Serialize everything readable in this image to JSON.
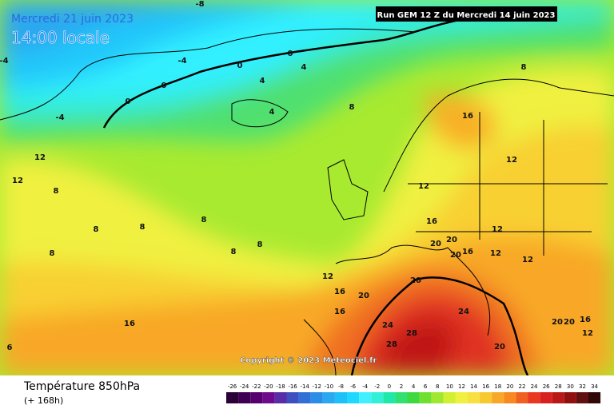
{
  "header": {
    "date": "Mercredi 21 juin 2023",
    "time": "14:00 locale",
    "run": "Run GEM 12 Z du Mercredi 14 juin 2023"
  },
  "copyright": "Copyright © 2023 Meteociel.fr",
  "footer": {
    "title": "Température 850hPa",
    "lead": "(+ 168h)"
  },
  "map": {
    "labels": [
      "-8",
      "-4",
      "-4",
      "-4",
      "0",
      "0",
      "0",
      "0",
      "4",
      "4",
      "4",
      "8",
      "8",
      "12",
      "12",
      "8",
      "8",
      "8",
      "8",
      "8",
      "8",
      "8",
      "12",
      "16",
      "16",
      "16",
      "12",
      "12",
      "16",
      "20",
      "20",
      "24",
      "28",
      "28",
      "24",
      "20",
      "20",
      "20",
      "16",
      "12",
      "12",
      "12",
      "12",
      "20",
      "20",
      "20",
      "16",
      "16",
      "6"
    ]
  },
  "colorbar": {
    "ticks": [
      -26,
      -24,
      -22,
      -20,
      -18,
      -16,
      -14,
      -12,
      -10,
      -8,
      -6,
      -4,
      -2,
      0,
      2,
      4,
      6,
      8,
      10,
      12,
      14,
      16,
      18,
      20,
      22,
      24,
      26,
      28,
      30,
      32,
      34
    ],
    "colors": [
      "#2b0038",
      "#3d0052",
      "#55006e",
      "#6e0a8c",
      "#5a2da8",
      "#3f4fc0",
      "#2f6fd6",
      "#2a8ee6",
      "#2aa8f0",
      "#1fc0f8",
      "#20d8ff",
      "#40f0ff",
      "#30f0d8",
      "#20e8a8",
      "#30e070",
      "#40d840",
      "#70e030",
      "#a0e830",
      "#d0f030",
      "#f0f040",
      "#f8e040",
      "#f8c830",
      "#f8a828",
      "#f88820",
      "#f06020",
      "#e83820",
      "#d82020",
      "#b81818",
      "#901010",
      "#601010",
      "#300808"
    ]
  }
}
